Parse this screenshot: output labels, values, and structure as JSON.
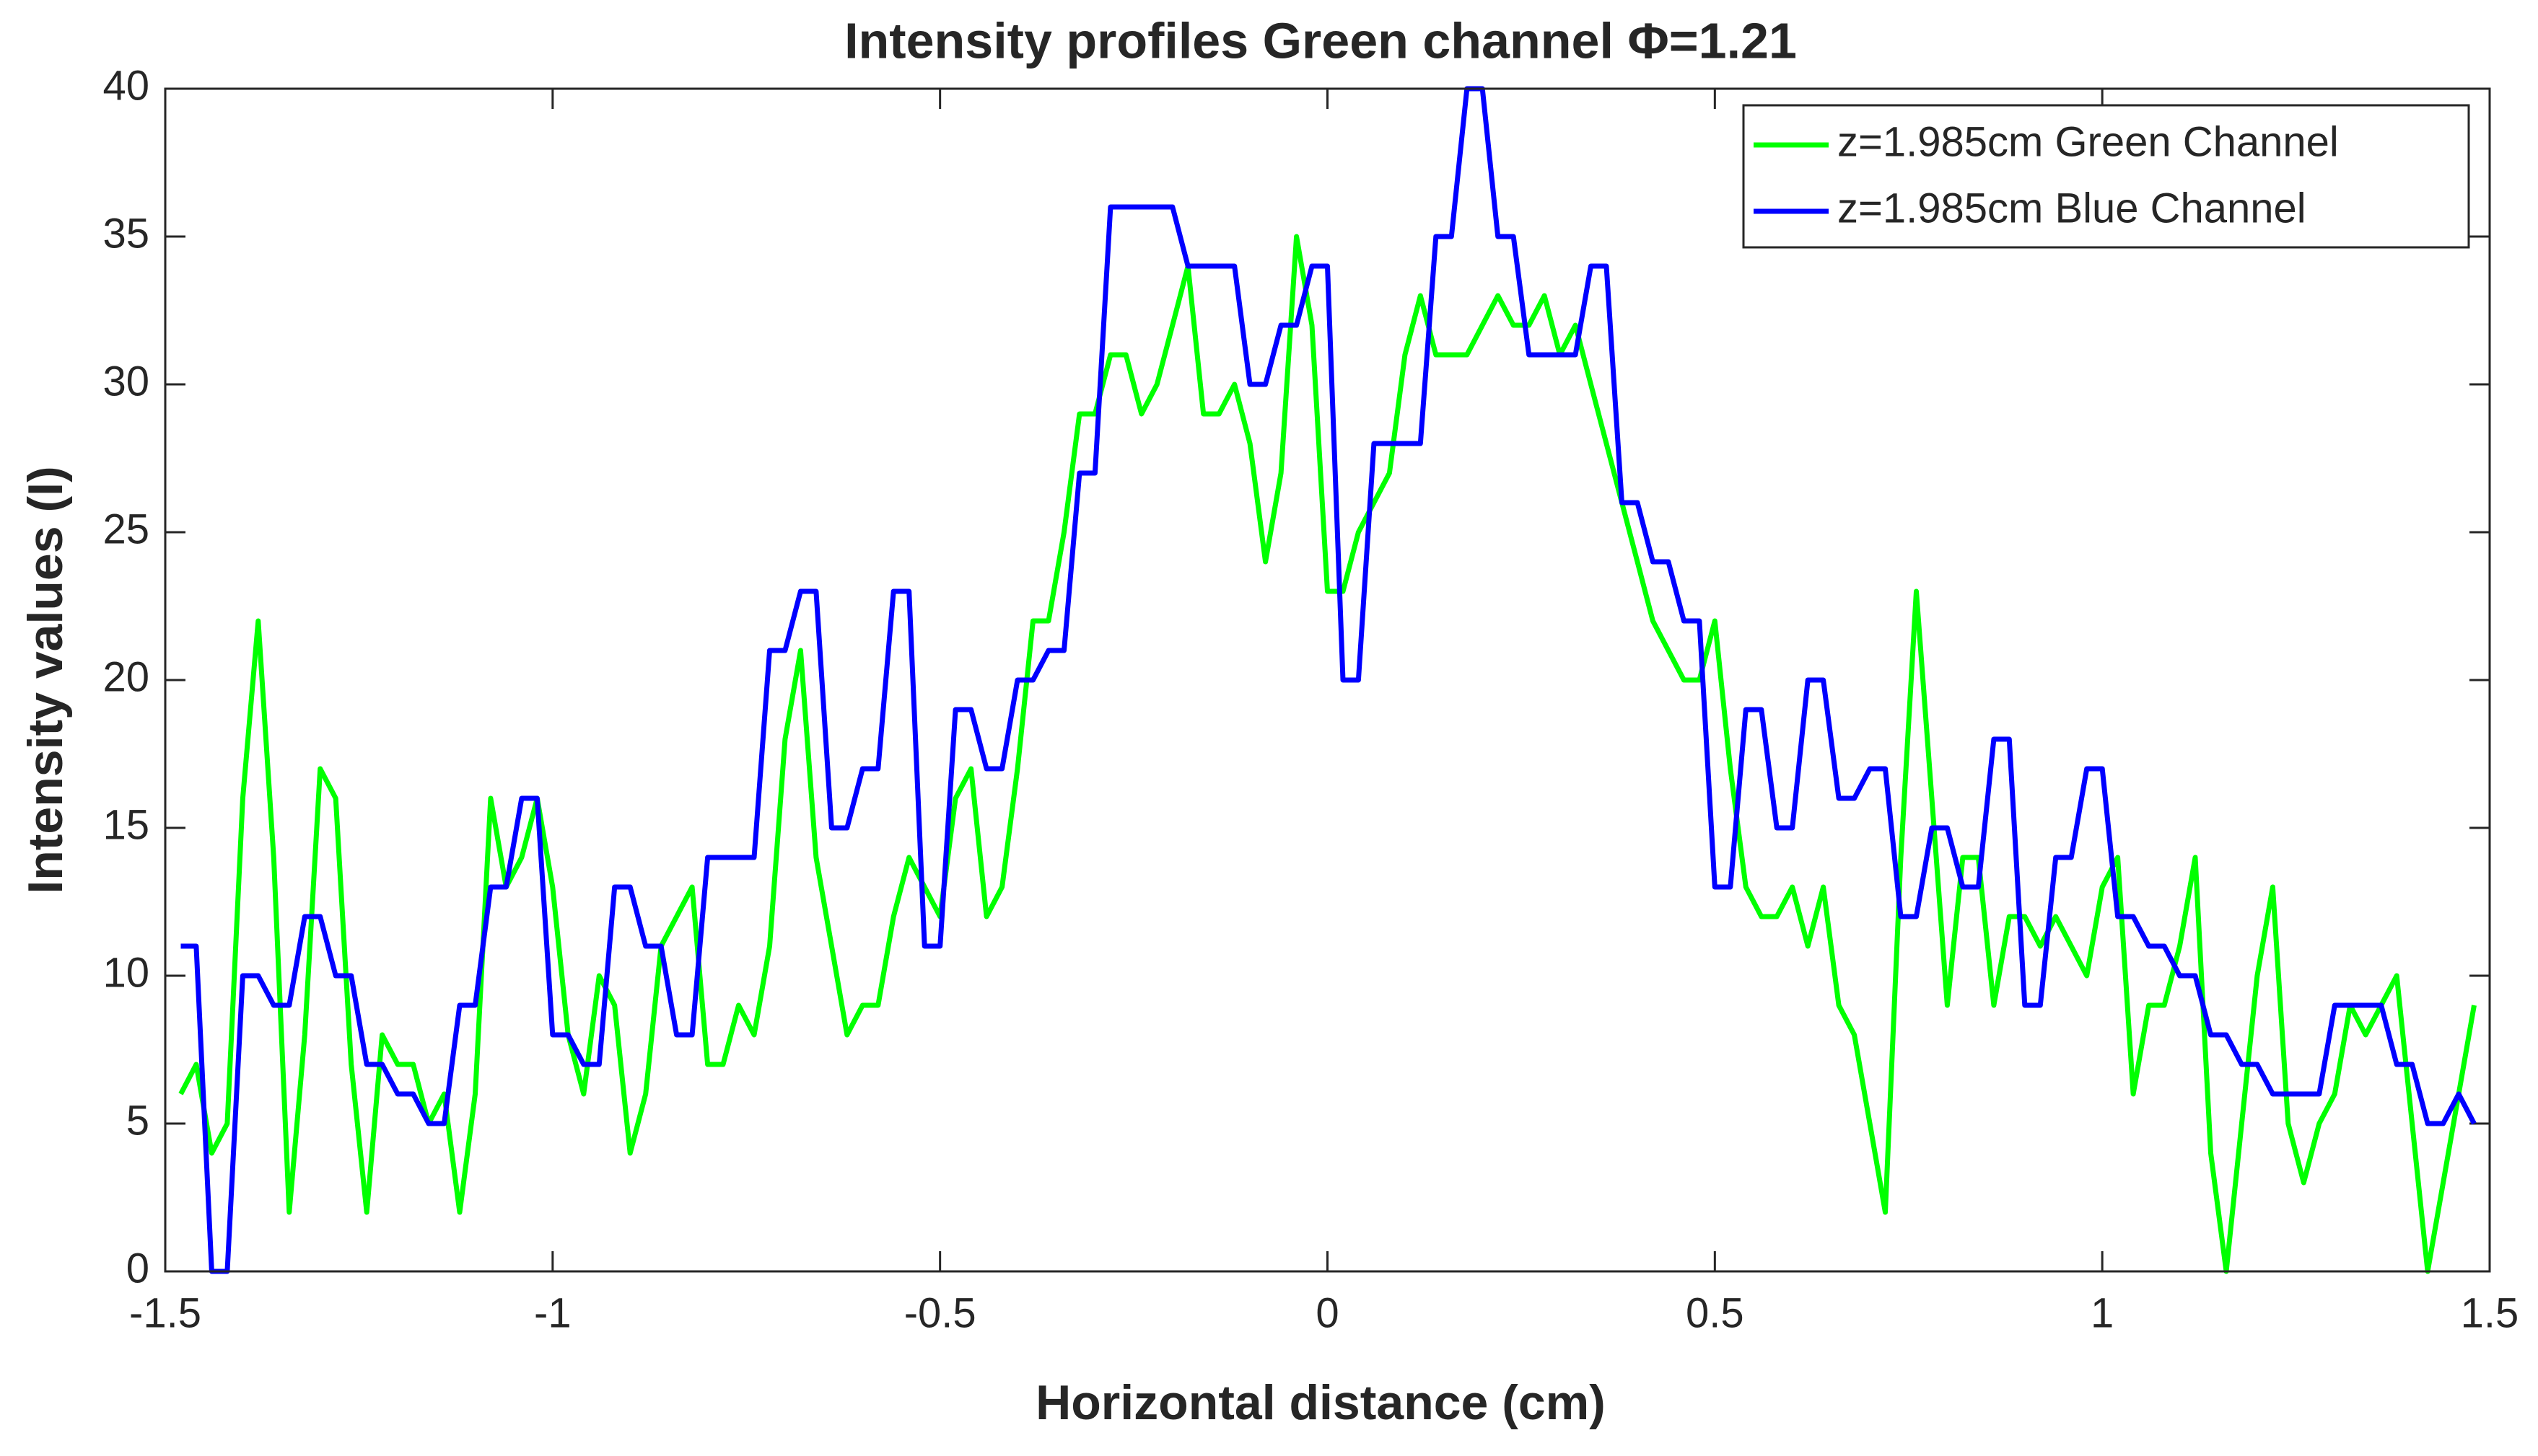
{
  "chart_data": {
    "type": "line",
    "title": "Intensity profiles Green channel Φ=1.21",
    "x_label": "Horizontal distance (cm)",
    "y_label": "Intensity values (I)",
    "xlim": [
      -1.5,
      1.5
    ],
    "xticks": [
      -1.5,
      -1,
      -0.5,
      0,
      0.5,
      1,
      1.5
    ],
    "ylim": [
      0,
      40
    ],
    "yticks": [
      0,
      5,
      10,
      15,
      20,
      25,
      30,
      35,
      40
    ],
    "legend_position": "upper right",
    "x": [
      -1.48,
      -1.46,
      -1.44,
      -1.42,
      -1.4,
      -1.38,
      -1.36,
      -1.34,
      -1.32,
      -1.3,
      -1.28,
      -1.26,
      -1.24,
      -1.22,
      -1.2,
      -1.18,
      -1.16,
      -1.14,
      -1.12,
      -1.1,
      -1.08,
      -1.06,
      -1.04,
      -1.02,
      -1,
      -0.98,
      -0.96,
      -0.94,
      -0.92,
      -0.9,
      -0.88,
      -0.86,
      -0.84,
      -0.82,
      -0.8,
      -0.78,
      -0.76,
      -0.74,
      -0.72,
      -0.7,
      -0.68,
      -0.66,
      -0.64,
      -0.62,
      -0.6,
      -0.58,
      -0.56,
      -0.54,
      -0.52,
      -0.5,
      -0.48,
      -0.46,
      -0.44,
      -0.42,
      -0.4,
      -0.38,
      -0.36,
      -0.34,
      -0.32,
      -0.3,
      -0.28,
      -0.26,
      -0.24,
      -0.22,
      -0.2,
      -0.18,
      -0.16,
      -0.14,
      -0.12,
      -0.1,
      -0.08,
      -0.06,
      -0.04,
      -0.02,
      0,
      0.02,
      0.04,
      0.06,
      0.08,
      0.1,
      0.12,
      0.14,
      0.16,
      0.18,
      0.2,
      0.22,
      0.24,
      0.26,
      0.28,
      0.3,
      0.32,
      0.34,
      0.36,
      0.38,
      0.4,
      0.42,
      0.44,
      0.46,
      0.48,
      0.5,
      0.52,
      0.54,
      0.56,
      0.58,
      0.6,
      0.62,
      0.64,
      0.66,
      0.68,
      0.7,
      0.72,
      0.74,
      0.76,
      0.78,
      0.8,
      0.82,
      0.84,
      0.86,
      0.88,
      0.9,
      0.92,
      0.94,
      0.96,
      0.98,
      1,
      1.02,
      1.04,
      1.06,
      1.08,
      1.1,
      1.12,
      1.14,
      1.16,
      1.18,
      1.2,
      1.22,
      1.24,
      1.26,
      1.28,
      1.3,
      1.32,
      1.34,
      1.36,
      1.38,
      1.4,
      1.42,
      1.44,
      1.46,
      1.48
    ],
    "series": [
      {
        "name": "z=1.985cm Green Channel",
        "color": "#00ff00",
        "values": [
          6,
          7,
          4,
          5,
          16,
          22,
          14,
          2,
          8,
          17,
          16,
          7,
          2,
          8,
          7,
          7,
          5,
          6,
          2,
          6,
          16,
          13,
          14,
          16,
          13,
          8,
          6,
          10,
          9,
          4,
          6,
          11,
          12,
          13,
          7,
          7,
          9,
          8,
          11,
          18,
          21,
          14,
          11,
          8,
          9,
          9,
          12,
          14,
          13,
          12,
          16,
          17,
          12,
          13,
          17,
          22,
          22,
          25,
          29,
          29,
          31,
          31,
          29,
          30,
          32,
          34,
          29,
          29,
          30,
          28,
          24,
          27,
          35,
          32,
          23,
          23,
          25,
          26,
          27,
          31,
          33,
          31,
          31,
          31,
          32,
          33,
          32,
          32,
          33,
          31,
          32,
          30,
          28,
          26,
          24,
          22,
          21,
          20,
          20,
          22,
          17,
          13,
          12,
          12,
          13,
          11,
          13,
          9,
          8,
          5,
          2,
          14,
          23,
          16,
          9,
          14,
          14,
          9,
          12,
          12,
          11,
          12,
          11,
          10,
          13,
          14,
          6,
          9,
          9,
          11,
          14,
          4,
          0,
          5,
          10,
          13,
          5,
          3,
          5,
          6,
          9,
          8,
          9,
          10,
          5,
          0,
          3,
          6,
          9
        ]
      },
      {
        "name": "z=1.985cm Blue Channel",
        "color": "#0000ff",
        "values": [
          11,
          11,
          0,
          0,
          10,
          10,
          9,
          9,
          12,
          12,
          10,
          10,
          7,
          7,
          6,
          6,
          5,
          5,
          9,
          9,
          13,
          13,
          16,
          16,
          8,
          8,
          7,
          7,
          13,
          13,
          11,
          11,
          8,
          8,
          14,
          14,
          14,
          14,
          21,
          21,
          23,
          23,
          15,
          15,
          17,
          17,
          23,
          23,
          11,
          11,
          19,
          19,
          17,
          17,
          20,
          20,
          21,
          21,
          27,
          27,
          36,
          36,
          36,
          36,
          36,
          34,
          34,
          34,
          34,
          30,
          30,
          32,
          32,
          34,
          34,
          20,
          20,
          28,
          28,
          28,
          28,
          35,
          35,
          40,
          40,
          35,
          35,
          31,
          31,
          31,
          31,
          34,
          34,
          26,
          26,
          24,
          24,
          22,
          22,
          13,
          13,
          19,
          19,
          15,
          15,
          20,
          20,
          16,
          16,
          17,
          17,
          12,
          12,
          15,
          15,
          13,
          13,
          18,
          18,
          9,
          9,
          14,
          14,
          17,
          17,
          12,
          12,
          11,
          11,
          10,
          10,
          8,
          8,
          7,
          7,
          6,
          6,
          6,
          6,
          9,
          9,
          9,
          9,
          7,
          7,
          5,
          5,
          6,
          5
        ]
      }
    ]
  }
}
